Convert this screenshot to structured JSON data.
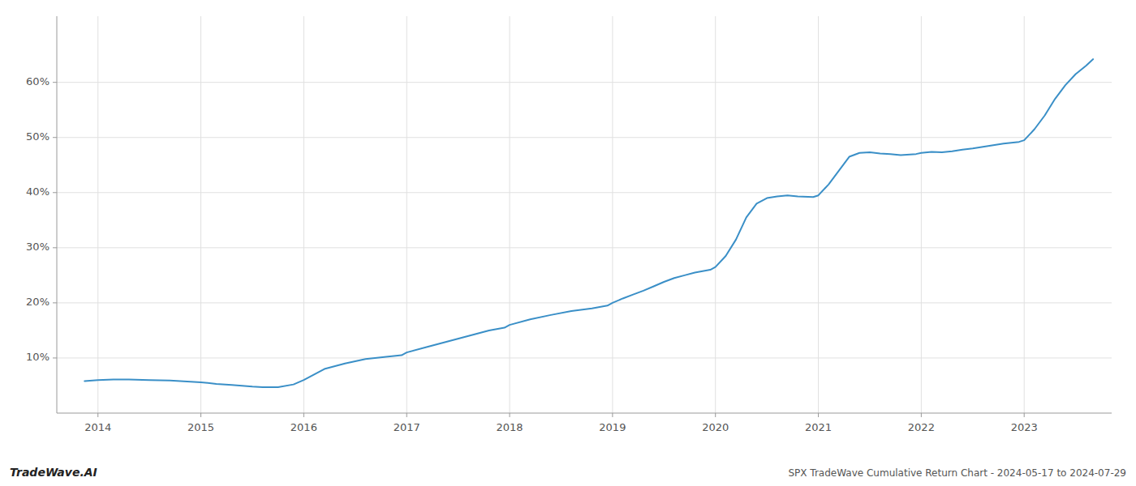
{
  "chart_data": {
    "type": "line",
    "title": "SPX TradeWave Cumulative Return Chart - 2024-05-17 to 2024-07-29",
    "annotations": [
      "TradeWave.AI"
    ],
    "color": "#3a8fc7",
    "grid": true,
    "x": [
      2013.87,
      2014.0,
      2014.15,
      2014.3,
      2014.5,
      2014.7,
      2014.9,
      2015.0,
      2015.15,
      2015.3,
      2015.5,
      2015.6,
      2015.75,
      2015.9,
      2016.0,
      2016.1,
      2016.2,
      2016.4,
      2016.6,
      2016.8,
      2016.95,
      2017.0,
      2017.2,
      2017.4,
      2017.6,
      2017.8,
      2017.95,
      2018.0,
      2018.2,
      2018.4,
      2018.6,
      2018.8,
      2018.95,
      2019.0,
      2019.1,
      2019.2,
      2019.3,
      2019.4,
      2019.5,
      2019.6,
      2019.7,
      2019.8,
      2019.95,
      2020.0,
      2020.1,
      2020.2,
      2020.3,
      2020.4,
      2020.5,
      2020.6,
      2020.7,
      2020.8,
      2020.95,
      2021.0,
      2021.1,
      2021.2,
      2021.3,
      2021.4,
      2021.5,
      2021.6,
      2021.7,
      2021.8,
      2021.95,
      2022.0,
      2022.1,
      2022.2,
      2022.3,
      2022.4,
      2022.5,
      2022.6,
      2022.7,
      2022.8,
      2022.95,
      2023.0,
      2023.1,
      2023.2,
      2023.3,
      2023.4,
      2023.5,
      2023.6,
      2023.67
    ],
    "values": [
      5.8,
      6.0,
      6.1,
      6.1,
      6.0,
      5.9,
      5.7,
      5.6,
      5.3,
      5.1,
      4.8,
      4.7,
      4.7,
      5.2,
      6.0,
      7.0,
      8.0,
      9.0,
      9.8,
      10.2,
      10.5,
      11.0,
      12.0,
      13.0,
      14.0,
      15.0,
      15.5,
      16.0,
      17.0,
      17.8,
      18.5,
      19.0,
      19.5,
      20.0,
      20.8,
      21.5,
      22.2,
      23.0,
      23.8,
      24.5,
      25.0,
      25.5,
      26.0,
      26.5,
      28.5,
      31.5,
      35.5,
      38.0,
      39.0,
      39.3,
      39.5,
      39.3,
      39.2,
      39.5,
      41.5,
      44.0,
      46.5,
      47.2,
      47.3,
      47.1,
      47.0,
      46.8,
      47.0,
      47.2,
      47.4,
      47.3,
      47.5,
      47.8,
      48.0,
      48.3,
      48.6,
      48.9,
      49.2,
      49.5,
      51.5,
      54.0,
      57.0,
      59.5,
      61.5,
      63.0,
      64.2
    ],
    "xlim": [
      2013.6,
      2023.85
    ],
    "ylim": [
      0,
      72
    ],
    "xticks": [
      2014,
      2015,
      2016,
      2017,
      2018,
      2019,
      2020,
      2021,
      2022,
      2023
    ],
    "yticks": [
      {
        "value": 10,
        "label": "10%"
      },
      {
        "value": 20,
        "label": "20%"
      },
      {
        "value": 30,
        "label": "30%"
      },
      {
        "value": 40,
        "label": "40%"
      },
      {
        "value": 50,
        "label": "50%"
      },
      {
        "value": 60,
        "label": "60%"
      }
    ]
  }
}
